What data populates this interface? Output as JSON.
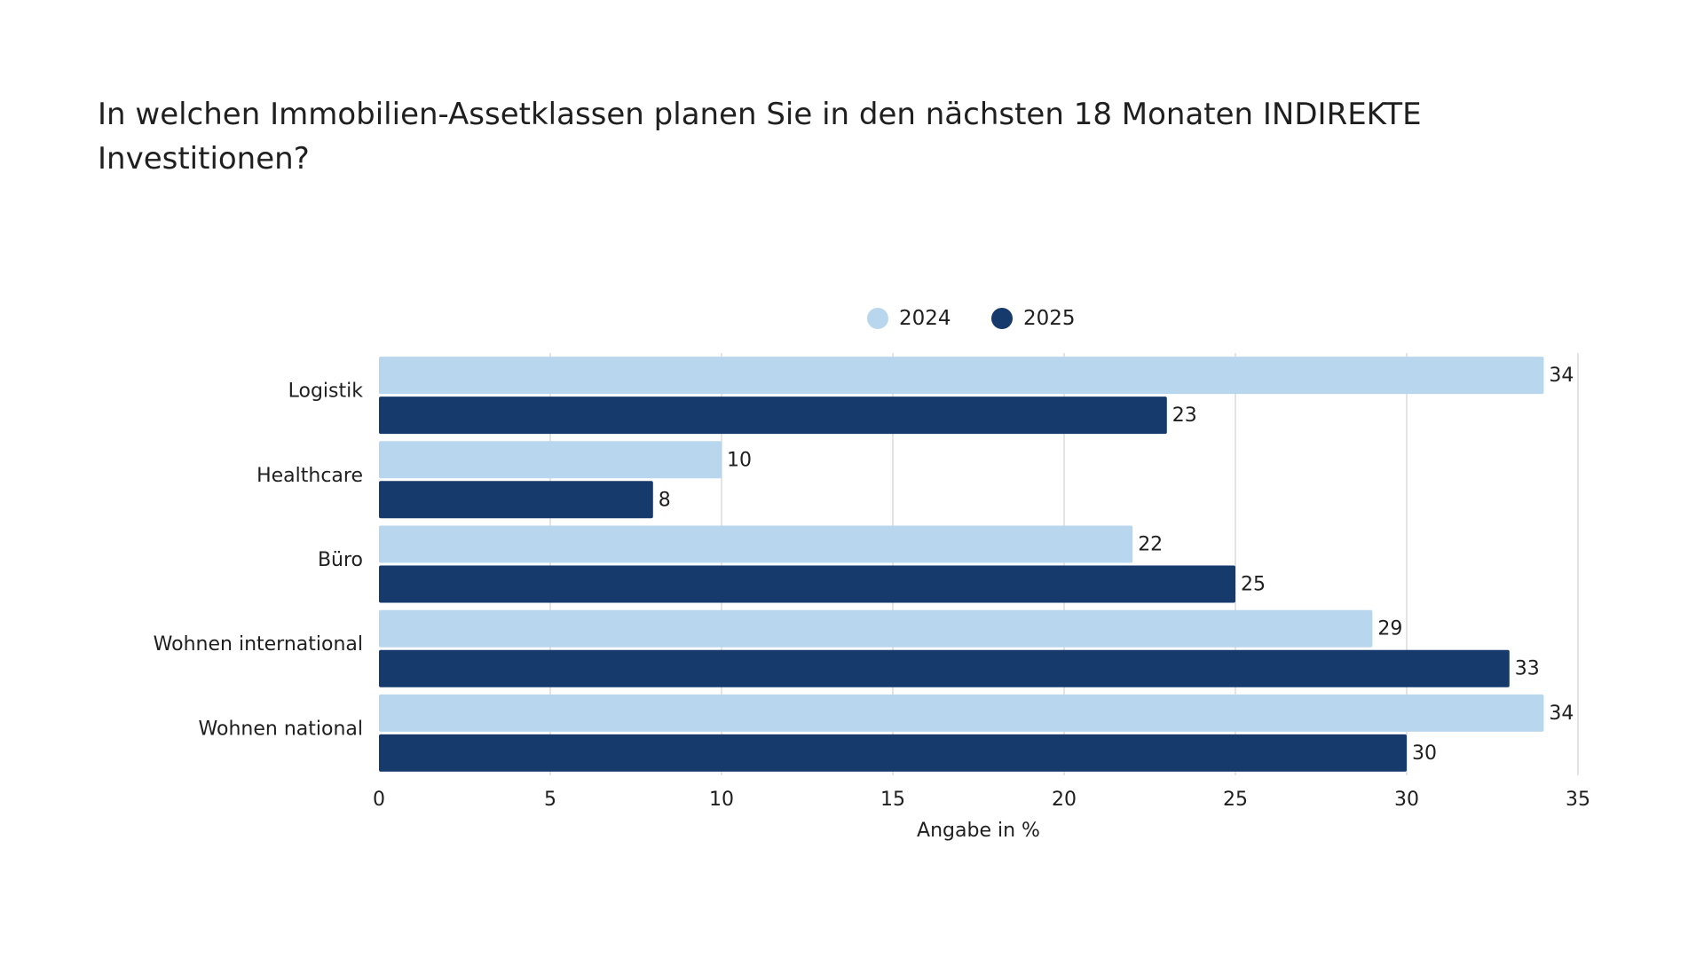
{
  "title": "In welchen Immobilien-Assetklassen planen Sie in den nächsten 18 Monaten INDIREKTE Investitionen?",
  "chart_data": {
    "type": "bar",
    "orientation": "horizontal",
    "title": "In welchen Immobilien-Assetklassen planen Sie in den nächsten 18 Monaten INDIREKTE Investitionen?",
    "xlabel": "Angabe in %",
    "ylabel": "",
    "categories": [
      "Logistik",
      "Healthcare",
      "Büro",
      "Wohnen international",
      "Wohnen national"
    ],
    "series": [
      {
        "name": "2024",
        "color": "#b8d7ee",
        "values": [
          34,
          10,
          22,
          29,
          34
        ]
      },
      {
        "name": "2025",
        "color": "#163a6b",
        "values": [
          23,
          8,
          25,
          33,
          30
        ]
      }
    ],
    "value_labels": [
      [
        "34",
        "10",
        "22",
        "29",
        "34"
      ],
      [
        "23",
        "8",
        "25",
        "33",
        "30"
      ]
    ],
    "xlim": [
      0,
      35
    ],
    "xticks": [
      0,
      5,
      10,
      15,
      20,
      25,
      30,
      35
    ],
    "xtick_labels": [
      "0",
      "5",
      "10",
      "15",
      "20",
      "25",
      "30",
      "35"
    ],
    "grid": "vertical",
    "legend_position": "top-center"
  }
}
